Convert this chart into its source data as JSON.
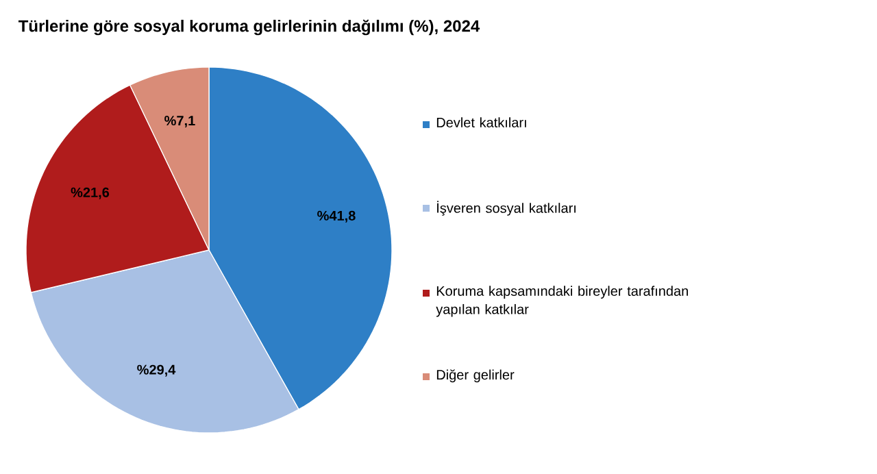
{
  "chart_data": {
    "type": "pie",
    "title": "Türlerine göre sosyal koruma gelirlerinin dağılımı (%), 2024",
    "categories": [
      "Devlet katkıları",
      "İşveren sosyal katkıları",
      "Koruma kapsamındaki bireyler tarafından yapılan katkılar",
      "Diğer gelirler"
    ],
    "values": [
      41.8,
      29.4,
      21.6,
      7.1
    ],
    "colors": [
      "#2e7fc6",
      "#a8c0e4",
      "#b01c1c",
      "#d98c78"
    ],
    "value_labels": [
      "%41,8",
      "%29,4",
      "%21,6",
      "%7,1"
    ],
    "legend": "right"
  }
}
